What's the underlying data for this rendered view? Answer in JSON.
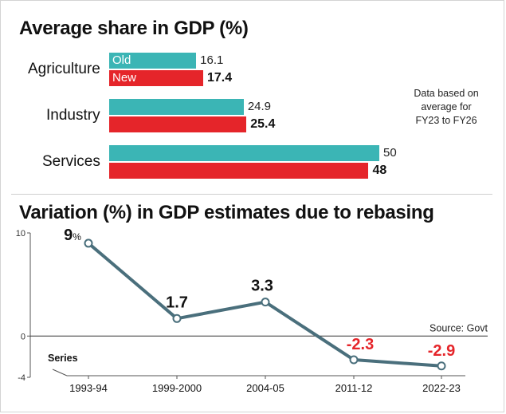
{
  "chart_data": [
    {
      "type": "bar",
      "title": "Average share in GDP (%)",
      "categories": [
        "Agriculture",
        "Industry",
        "Services"
      ],
      "series": [
        {
          "name": "Old",
          "values": [
            16.1,
            24.9,
            50
          ],
          "labels": [
            "16.1",
            "24.9",
            "50"
          ],
          "color": "#3bb5b5"
        },
        {
          "name": "New",
          "values": [
            17.4,
            25.4,
            48
          ],
          "labels": [
            "17.4",
            "25.4",
            "48"
          ],
          "color": "#e5252a"
        }
      ],
      "note": [
        "Data based on",
        "average for",
        "FY23 to FY26"
      ]
    },
    {
      "type": "line",
      "title": "Variation (%) in GDP estimates due to rebasing",
      "xlabel": "Series",
      "categories": [
        "1993-94",
        "1999-2000",
        "2004-05",
        "2011-12",
        "2022-23"
      ],
      "values": [
        9,
        1.7,
        3.3,
        -2.3,
        -2.9
      ],
      "point_labels": [
        "9",
        "1.7",
        "3.3",
        "-2.3",
        "-2.9"
      ],
      "point_label_suffix": "%",
      "ylim": [
        -4,
        10
      ],
      "yticks": [
        "10",
        "0",
        "-4"
      ],
      "source": "Source: Govt",
      "line_color": "#4a6f7c",
      "negative_color": "#e5252a"
    }
  ]
}
